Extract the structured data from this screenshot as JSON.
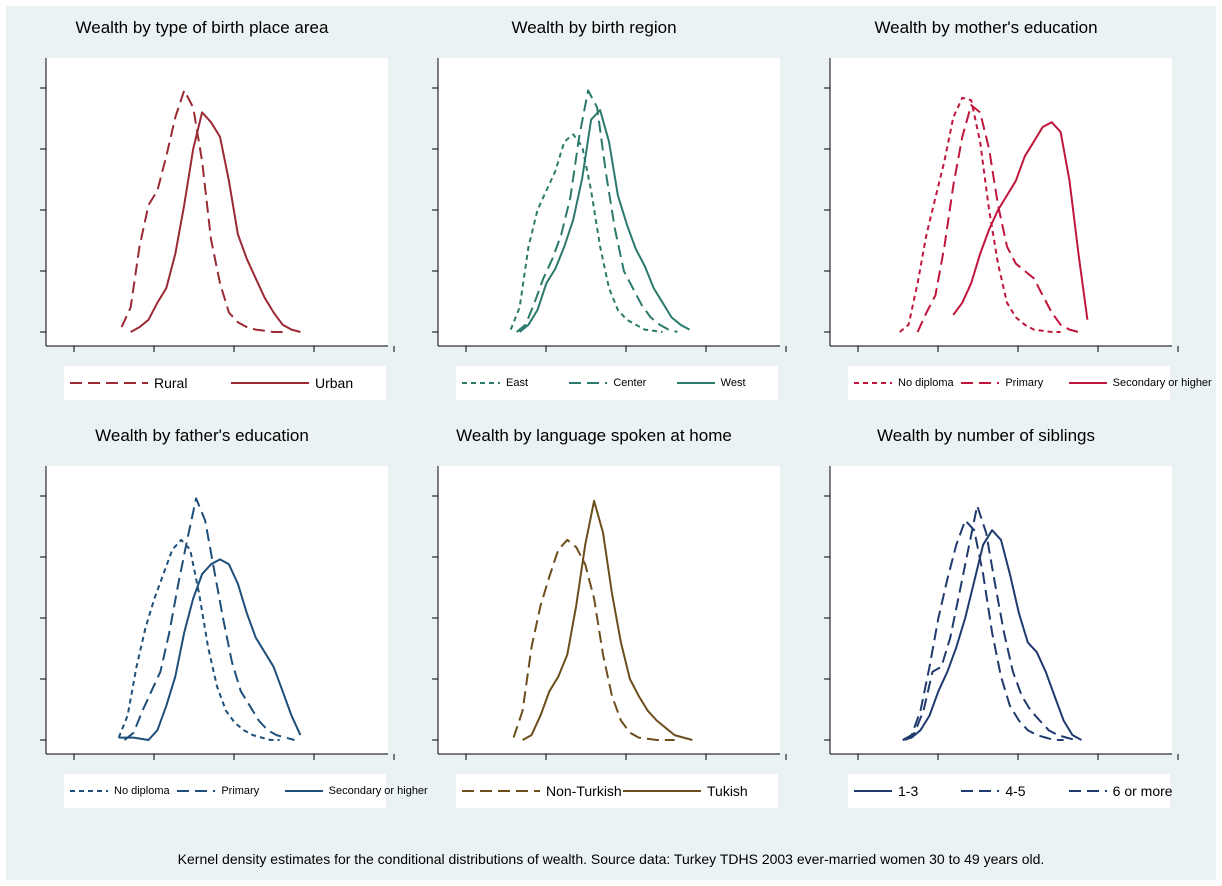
{
  "caption": "Kernel density estimates for the conditional distributions of wealth. Source data: Turkey TDHS 2003 ever-married women 30 to 49 years old.",
  "chart_data": [
    {
      "type": "line",
      "title": "Wealth by type of birth place area",
      "color": "#9b2a35",
      "legend_font": 14,
      "x_range": [
        0,
        100
      ],
      "y_range": [
        0,
        100
      ],
      "series": [
        {
          "name": "Rural",
          "dash": "long",
          "x": [
            18,
            21,
            24,
            27,
            30,
            33,
            36,
            39,
            42,
            45,
            48,
            51,
            54,
            57,
            60,
            63,
            66,
            69,
            72
          ],
          "y": [
            2,
            10,
            35,
            52,
            58,
            72,
            88,
            99,
            92,
            70,
            38,
            20,
            8,
            4,
            2,
            1,
            0.5,
            0,
            0
          ]
        },
        {
          "name": "Urban",
          "dash": "solid",
          "x": [
            21,
            24,
            27,
            30,
            33,
            36,
            39,
            42,
            45,
            48,
            51,
            54,
            57,
            60,
            63,
            66,
            69,
            72,
            75,
            78
          ],
          "y": [
            0,
            2,
            5,
            12,
            18,
            32,
            52,
            75,
            90,
            86,
            80,
            62,
            40,
            30,
            22,
            14,
            8,
            3,
            1,
            0
          ]
        }
      ]
    },
    {
      "type": "line",
      "title": "Wealth by birth region",
      "color": "#2b7a6c",
      "legend_font": 11,
      "x_range": [
        0,
        100
      ],
      "y_range": [
        0,
        100
      ],
      "series": [
        {
          "name": "East",
          "dash": "short",
          "x": [
            17,
            20,
            23,
            26,
            29,
            32,
            35,
            38,
            41,
            44,
            47,
            50,
            53,
            56,
            59,
            62,
            65,
            68
          ],
          "y": [
            1,
            10,
            35,
            50,
            58,
            66,
            78,
            81,
            76,
            58,
            35,
            18,
            9,
            5,
            3,
            1,
            0.5,
            0
          ]
        },
        {
          "name": "Center",
          "dash": "long",
          "x": [
            19,
            22,
            25,
            28,
            31,
            34,
            37,
            40,
            43,
            46,
            49,
            52,
            55,
            58,
            61,
            64,
            67,
            70,
            73
          ],
          "y": [
            0,
            3,
            12,
            22,
            30,
            40,
            55,
            80,
            99,
            92,
            65,
            42,
            25,
            18,
            11,
            6,
            3,
            1,
            0
          ]
        },
        {
          "name": "West",
          "dash": "solid",
          "x": [
            20,
            23,
            26,
            29,
            32,
            35,
            38,
            41,
            44,
            47,
            50,
            53,
            56,
            59,
            62,
            65,
            68,
            71,
            74,
            77
          ],
          "y": [
            0,
            3,
            9,
            20,
            26,
            35,
            46,
            63,
            87,
            91,
            78,
            56,
            44,
            34,
            27,
            18,
            12,
            6,
            3,
            1
          ]
        }
      ]
    },
    {
      "type": "line",
      "title": "Wealth by mother's education",
      "color": "#c0163c",
      "legend_font": 11,
      "x_range": [
        0,
        100
      ],
      "y_range": [
        0,
        100
      ],
      "series": [
        {
          "name": "No diploma",
          "dash": "short",
          "x": [
            16,
            19,
            22,
            25,
            28,
            31,
            34,
            37,
            40,
            43,
            46,
            49,
            52,
            55,
            58,
            61,
            64,
            67,
            70
          ],
          "y": [
            0,
            3,
            20,
            40,
            55,
            70,
            88,
            96,
            95,
            78,
            50,
            28,
            12,
            6,
            3,
            1,
            0.5,
            0,
            0
          ]
        },
        {
          "name": "Primary",
          "dash": "long",
          "x": [
            22,
            25,
            28,
            31,
            34,
            37,
            40,
            43,
            46,
            49,
            52,
            55,
            58,
            61,
            64,
            67,
            70,
            73,
            76
          ],
          "y": [
            0,
            8,
            15,
            35,
            60,
            80,
            93,
            90,
            75,
            52,
            35,
            28,
            25,
            22,
            15,
            8,
            3,
            1,
            0
          ]
        },
        {
          "name": "Secondary or higher",
          "dash": "solid",
          "x": [
            34,
            37,
            40,
            43,
            46,
            49,
            52,
            55,
            58,
            61,
            64,
            67,
            70,
            73,
            76,
            79
          ],
          "y": [
            7,
            12,
            20,
            32,
            42,
            50,
            56,
            62,
            72,
            78,
            84,
            86,
            82,
            62,
            32,
            5
          ]
        }
      ]
    },
    {
      "type": "line",
      "title": "Wealth by father's education",
      "color": "#1e4f7a",
      "legend_font": 11,
      "x_range": [
        0,
        100
      ],
      "y_range": [
        0,
        100
      ],
      "series": [
        {
          "name": "No diploma",
          "dash": "short",
          "x": [
            17,
            20,
            23,
            26,
            29,
            32,
            35,
            38,
            41,
            44,
            47,
            50,
            53,
            56,
            59,
            62,
            65,
            68,
            71
          ],
          "y": [
            1,
            10,
            30,
            46,
            58,
            68,
            78,
            82,
            78,
            60,
            38,
            22,
            12,
            7,
            4,
            2,
            1,
            0,
            0
          ]
        },
        {
          "name": "Primary",
          "dash": "long",
          "x": [
            19,
            22,
            25,
            28,
            31,
            34,
            37,
            40,
            43,
            46,
            49,
            52,
            55,
            58,
            61,
            64,
            67,
            70,
            73,
            76
          ],
          "y": [
            0,
            3,
            12,
            20,
            28,
            44,
            64,
            82,
            99,
            90,
            70,
            50,
            32,
            20,
            14,
            8,
            4,
            2,
            1,
            0
          ]
        },
        {
          "name": "Secondary or higher",
          "dash": "solid",
          "x": [
            17,
            22,
            27,
            30,
            33,
            36,
            39,
            42,
            45,
            48,
            51,
            54,
            57,
            60,
            63,
            66,
            69,
            72,
            75,
            78
          ],
          "y": [
            1,
            1,
            0,
            4,
            14,
            26,
            44,
            58,
            68,
            72,
            74,
            72,
            64,
            52,
            42,
            36,
            30,
            20,
            10,
            2
          ]
        }
      ]
    },
    {
      "type": "line",
      "title": "Wealth by language spoken at home",
      "color": "#6b4e1c",
      "legend_font": 14,
      "x_range": [
        0,
        100
      ],
      "y_range": [
        0,
        100
      ],
      "series": [
        {
          "name": "Non-Turkish",
          "dash": "long",
          "x": [
            18,
            21,
            24,
            27,
            30,
            33,
            36,
            39,
            42,
            45,
            48,
            51,
            54,
            57,
            60,
            63,
            66,
            69,
            72
          ],
          "y": [
            1,
            12,
            38,
            55,
            67,
            78,
            82,
            79,
            72,
            58,
            35,
            18,
            8,
            3,
            1,
            0.5,
            0,
            0,
            0
          ]
        },
        {
          "name": "Tukish",
          "dash": "solid",
          "x": [
            21,
            24,
            27,
            30,
            33,
            36,
            39,
            42,
            45,
            48,
            51,
            54,
            57,
            60,
            63,
            66,
            69,
            72,
            75,
            78
          ],
          "y": [
            0,
            2,
            10,
            20,
            26,
            35,
            55,
            80,
            98,
            85,
            60,
            40,
            25,
            18,
            12,
            8,
            5,
            2,
            1,
            0
          ]
        }
      ]
    },
    {
      "type": "line",
      "title": "Wealth by number of siblings",
      "color": "#1f3a6e",
      "legend_font": 14,
      "x_range": [
        0,
        100
      ],
      "y_range": [
        0,
        100
      ],
      "series": [
        {
          "name": "1-3",
          "dash": "solid",
          "x": [
            17,
            20,
            23,
            26,
            29,
            32,
            35,
            38,
            41,
            44,
            47,
            50,
            53,
            56,
            59,
            62,
            65,
            68,
            71,
            74,
            77
          ],
          "y": [
            0,
            1,
            4,
            10,
            20,
            28,
            38,
            50,
            65,
            80,
            86,
            82,
            68,
            52,
            40,
            36,
            28,
            18,
            8,
            2,
            0
          ]
        },
        {
          "name": "4-5",
          "dash": "long",
          "x": [
            18,
            21,
            24,
            27,
            30,
            33,
            36,
            39,
            42,
            45,
            48,
            51,
            54,
            57,
            60,
            63,
            66,
            69,
            72,
            75
          ],
          "y": [
            0,
            3,
            12,
            28,
            30,
            42,
            60,
            78,
            96,
            85,
            64,
            44,
            28,
            18,
            12,
            8,
            4,
            2,
            1,
            0
          ]
        },
        {
          "name": "6 or more",
          "dash": "long",
          "x": [
            17,
            20,
            23,
            26,
            29,
            32,
            35,
            38,
            41,
            44,
            47,
            50,
            53,
            56,
            59,
            62,
            65,
            68,
            71
          ],
          "y": [
            0,
            2,
            12,
            30,
            50,
            66,
            80,
            90,
            86,
            68,
            44,
            26,
            14,
            8,
            4,
            2,
            1,
            0,
            0
          ]
        }
      ]
    }
  ]
}
